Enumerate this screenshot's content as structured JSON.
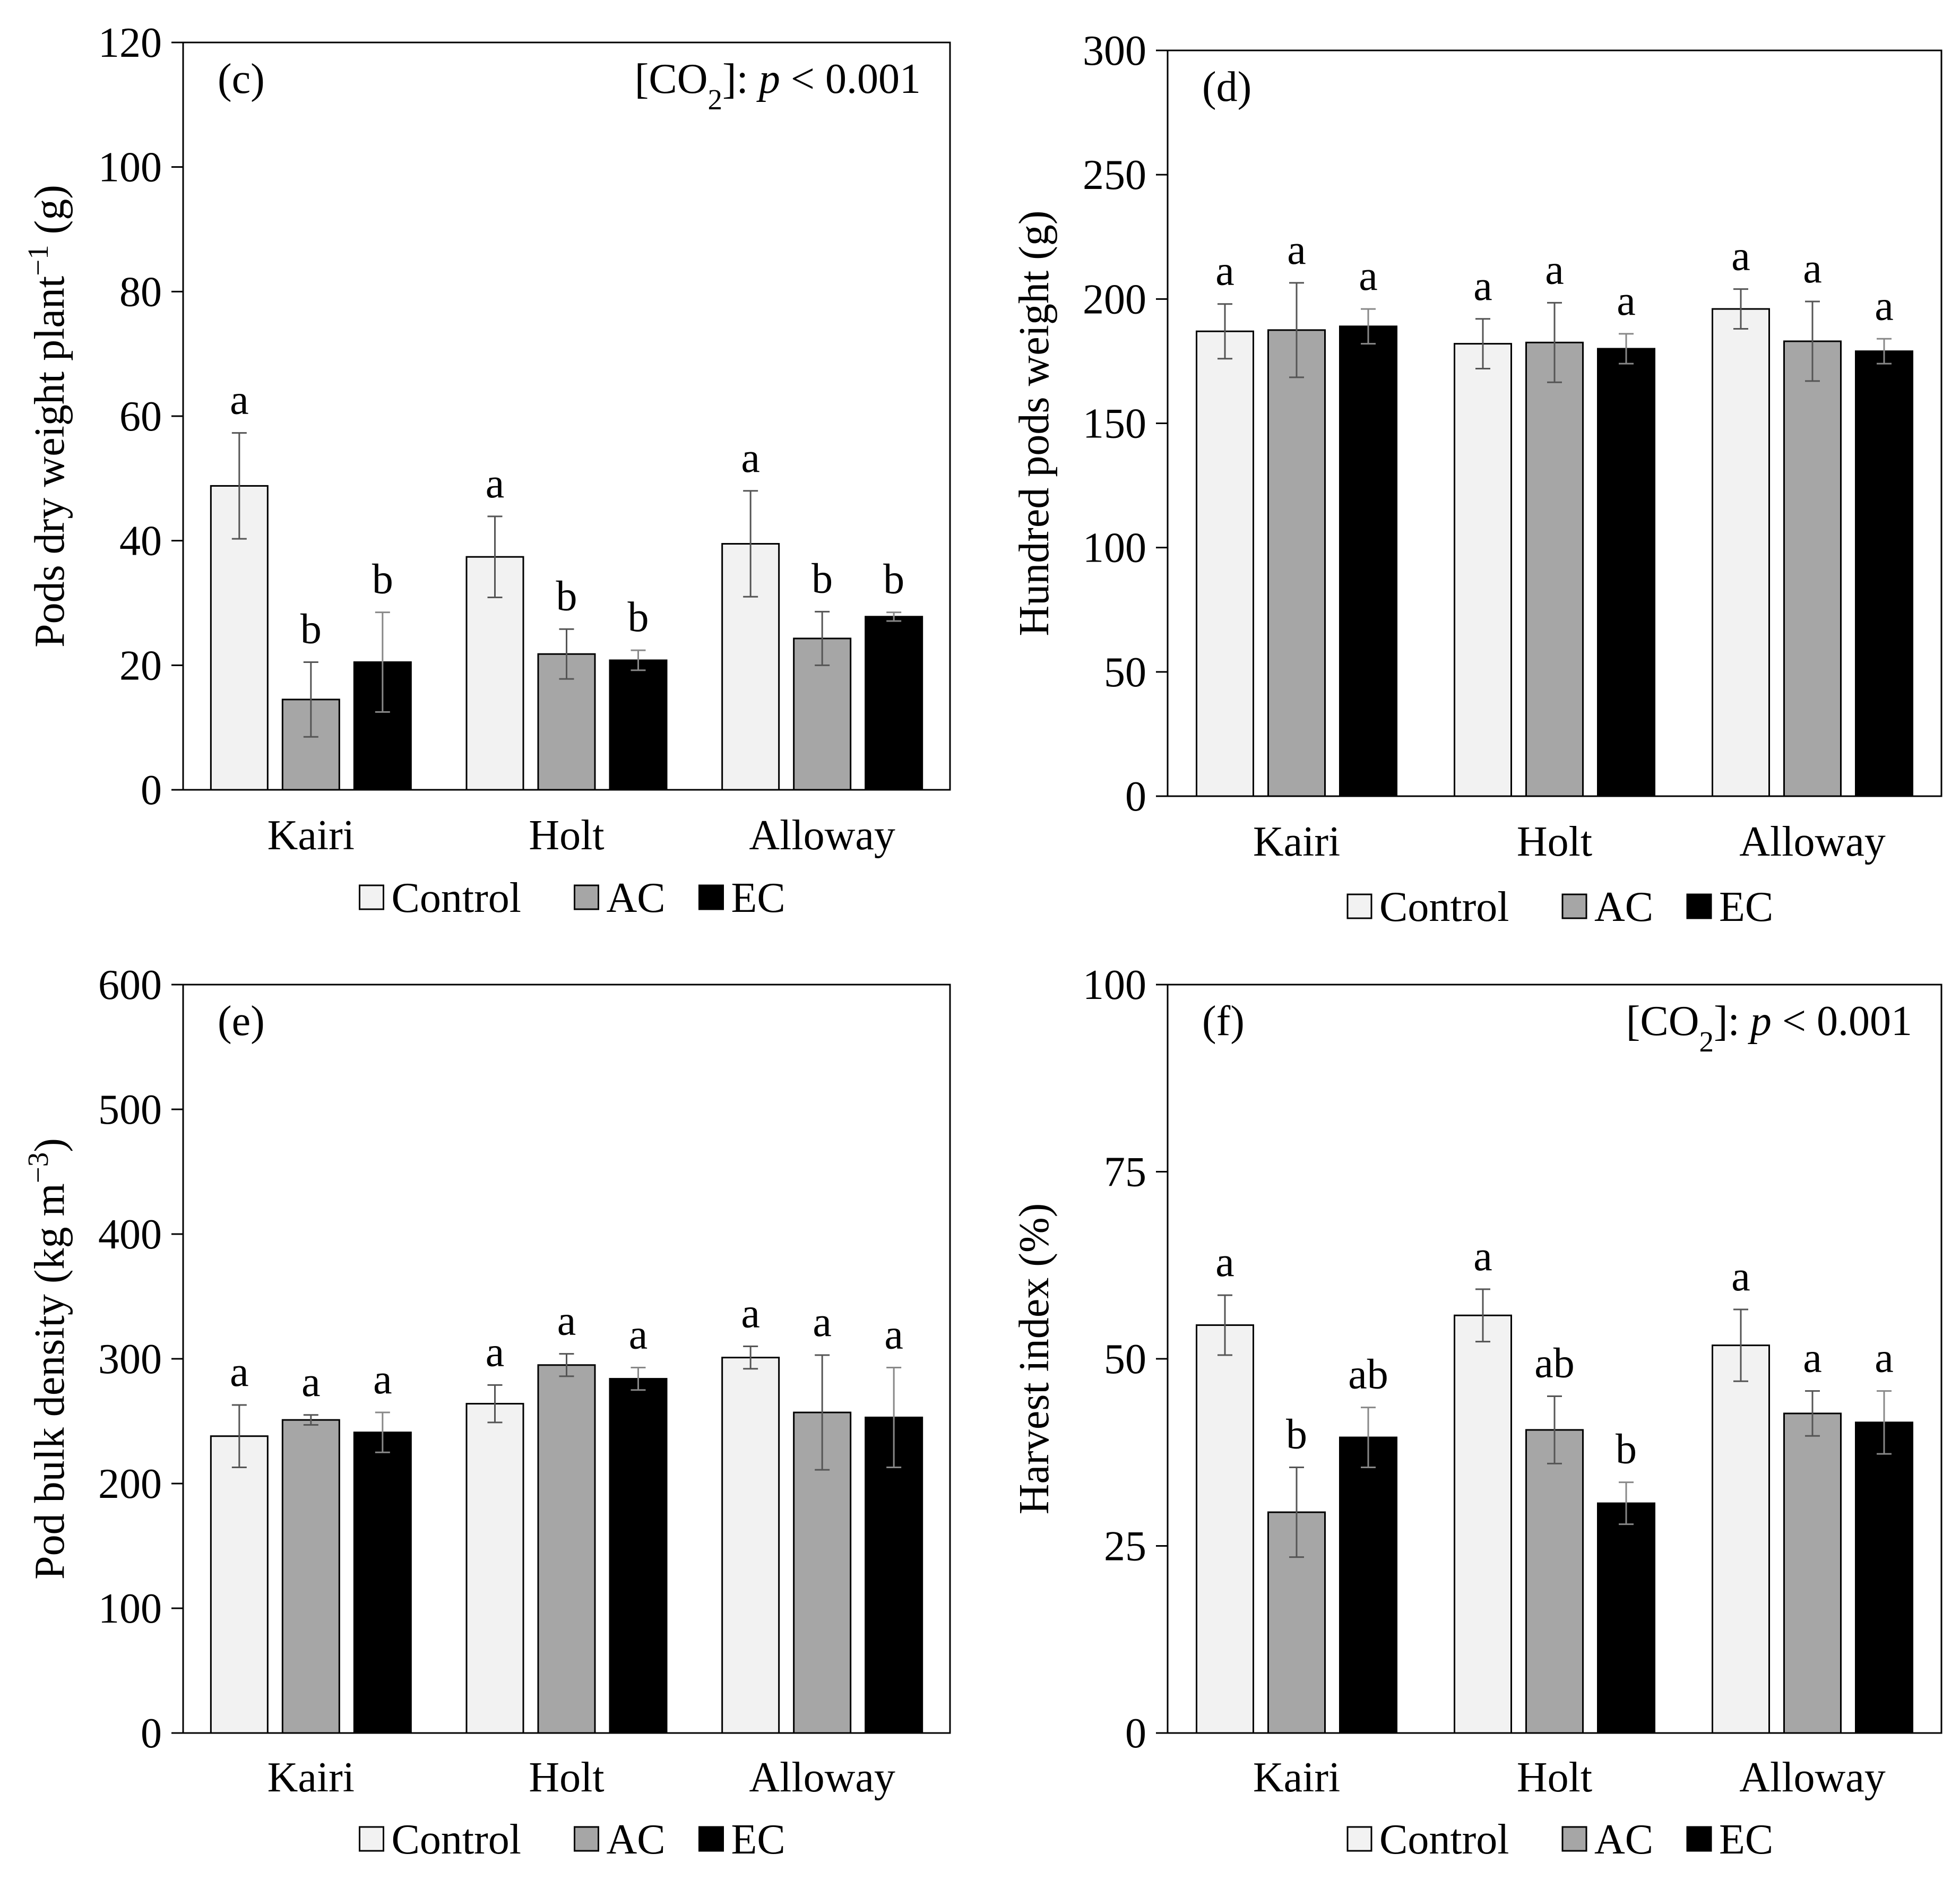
{
  "legend": {
    "items": [
      {
        "label": "Control",
        "color": "#f2f2f2"
      },
      {
        "label": "AC",
        "color": "#a6a6a6"
      },
      {
        "label": "EC",
        "color": "#000000"
      }
    ]
  },
  "chart_data": [
    {
      "id": "c",
      "type": "bar",
      "panel_label": "(c)",
      "annotation": {
        "prefix": "[CO",
        "sub": "2",
        "mid": "]: ",
        "p": "p",
        "suffix": " < 0.001"
      },
      "ylabel": {
        "text": "Pods dry weight plant",
        "sup": "−1",
        "unit": " (g)"
      },
      "xlabel": "",
      "categories": [
        "Kairi",
        "Holt",
        "Alloway"
      ],
      "ylim": [
        0,
        120
      ],
      "yticks": [
        0,
        20,
        40,
        60,
        80,
        100,
        120
      ],
      "grid": false,
      "legend_position": "bottom",
      "series": [
        {
          "name": "Control",
          "color": "#f2f2f2",
          "values": [
            48.8,
            37.4,
            39.5
          ],
          "errors": [
            8.5,
            6.5,
            8.5
          ],
          "letters": [
            "a",
            "a",
            "a"
          ]
        },
        {
          "name": "AC",
          "color": "#a6a6a6",
          "values": [
            14.5,
            21.8,
            24.3
          ],
          "errors": [
            6.0,
            4.0,
            4.3
          ],
          "letters": [
            "b",
            "b",
            "b"
          ]
        },
        {
          "name": "EC",
          "color": "#000000",
          "values": [
            20.5,
            20.8,
            27.8
          ],
          "errors": [
            8.0,
            1.6,
            0.7
          ],
          "letters": [
            "b",
            "b",
            "b"
          ]
        }
      ]
    },
    {
      "id": "d",
      "type": "bar",
      "panel_label": "(d)",
      "annotation": null,
      "ylabel": {
        "text": "Hundred pods weight (g)",
        "sup": "",
        "unit": ""
      },
      "xlabel": "",
      "categories": [
        "Kairi",
        "Holt",
        "Alloway"
      ],
      "ylim": [
        0,
        300
      ],
      "yticks": [
        0,
        50,
        100,
        150,
        200,
        250,
        300
      ],
      "grid": false,
      "legend_position": "bottom",
      "series": [
        {
          "name": "Control",
          "color": "#f2f2f2",
          "values": [
            187,
            182,
            196
          ],
          "errors": [
            11,
            10,
            8
          ],
          "letters": [
            "a",
            "a",
            "a"
          ]
        },
        {
          "name": "AC",
          "color": "#a6a6a6",
          "values": [
            187.5,
            182.5,
            183
          ],
          "errors": [
            19,
            16,
            16
          ],
          "letters": [
            "a",
            "a",
            "a"
          ]
        },
        {
          "name": "EC",
          "color": "#000000",
          "values": [
            189,
            180,
            179
          ],
          "errors": [
            7,
            6,
            5
          ],
          "letters": [
            "a",
            "a",
            "a"
          ]
        }
      ]
    },
    {
      "id": "e",
      "type": "bar",
      "panel_label": "(e)",
      "annotation": null,
      "ylabel": {
        "text": "Pod bulk density (kg m",
        "sup": "−3",
        "unit": ")"
      },
      "xlabel": "",
      "categories": [
        "Kairi",
        "Holt",
        "Alloway"
      ],
      "ylim": [
        0,
        600
      ],
      "yticks": [
        0,
        100,
        200,
        300,
        400,
        500,
        600
      ],
      "grid": false,
      "legend_position": "bottom",
      "series": [
        {
          "name": "Control",
          "color": "#f2f2f2",
          "values": [
            238,
            264,
            301
          ],
          "errors": [
            25,
            15,
            9
          ],
          "letters": [
            "a",
            "a",
            "a"
          ]
        },
        {
          "name": "AC",
          "color": "#a6a6a6",
          "values": [
            251,
            295,
            257
          ],
          "errors": [
            4,
            9,
            46
          ],
          "letters": [
            "a",
            "a",
            "a"
          ]
        },
        {
          "name": "EC",
          "color": "#000000",
          "values": [
            241,
            284,
            253
          ],
          "errors": [
            16,
            9,
            40
          ],
          "letters": [
            "a",
            "a",
            "a"
          ]
        }
      ]
    },
    {
      "id": "f",
      "type": "bar",
      "panel_label": "(f)",
      "annotation": {
        "prefix": "[CO",
        "sub": "2",
        "mid": "]: ",
        "p": "p",
        "suffix": " < 0.001"
      },
      "ylabel": {
        "text": "Harvest index (%)",
        "sup": "",
        "unit": ""
      },
      "xlabel": "",
      "categories": [
        "Kairi",
        "Holt",
        "Alloway"
      ],
      "ylim": [
        0,
        100
      ],
      "yticks": [
        0,
        25,
        50,
        75,
        100
      ],
      "grid": false,
      "legend_position": "bottom",
      "series": [
        {
          "name": "Control",
          "color": "#f2f2f2",
          "values": [
            54.5,
            55.8,
            51.8
          ],
          "errors": [
            4.0,
            3.5,
            4.8
          ],
          "letters": [
            "a",
            "a",
            "a"
          ]
        },
        {
          "name": "AC",
          "color": "#a6a6a6",
          "values": [
            29.5,
            40.5,
            42.7
          ],
          "errors": [
            6.0,
            4.5,
            3.0
          ],
          "letters": [
            "b",
            "ab",
            "a"
          ]
        },
        {
          "name": "EC",
          "color": "#000000",
          "values": [
            39.5,
            30.7,
            41.5
          ],
          "errors": [
            4.0,
            2.8,
            4.2
          ],
          "letters": [
            "ab",
            "b",
            "a"
          ]
        }
      ]
    }
  ]
}
